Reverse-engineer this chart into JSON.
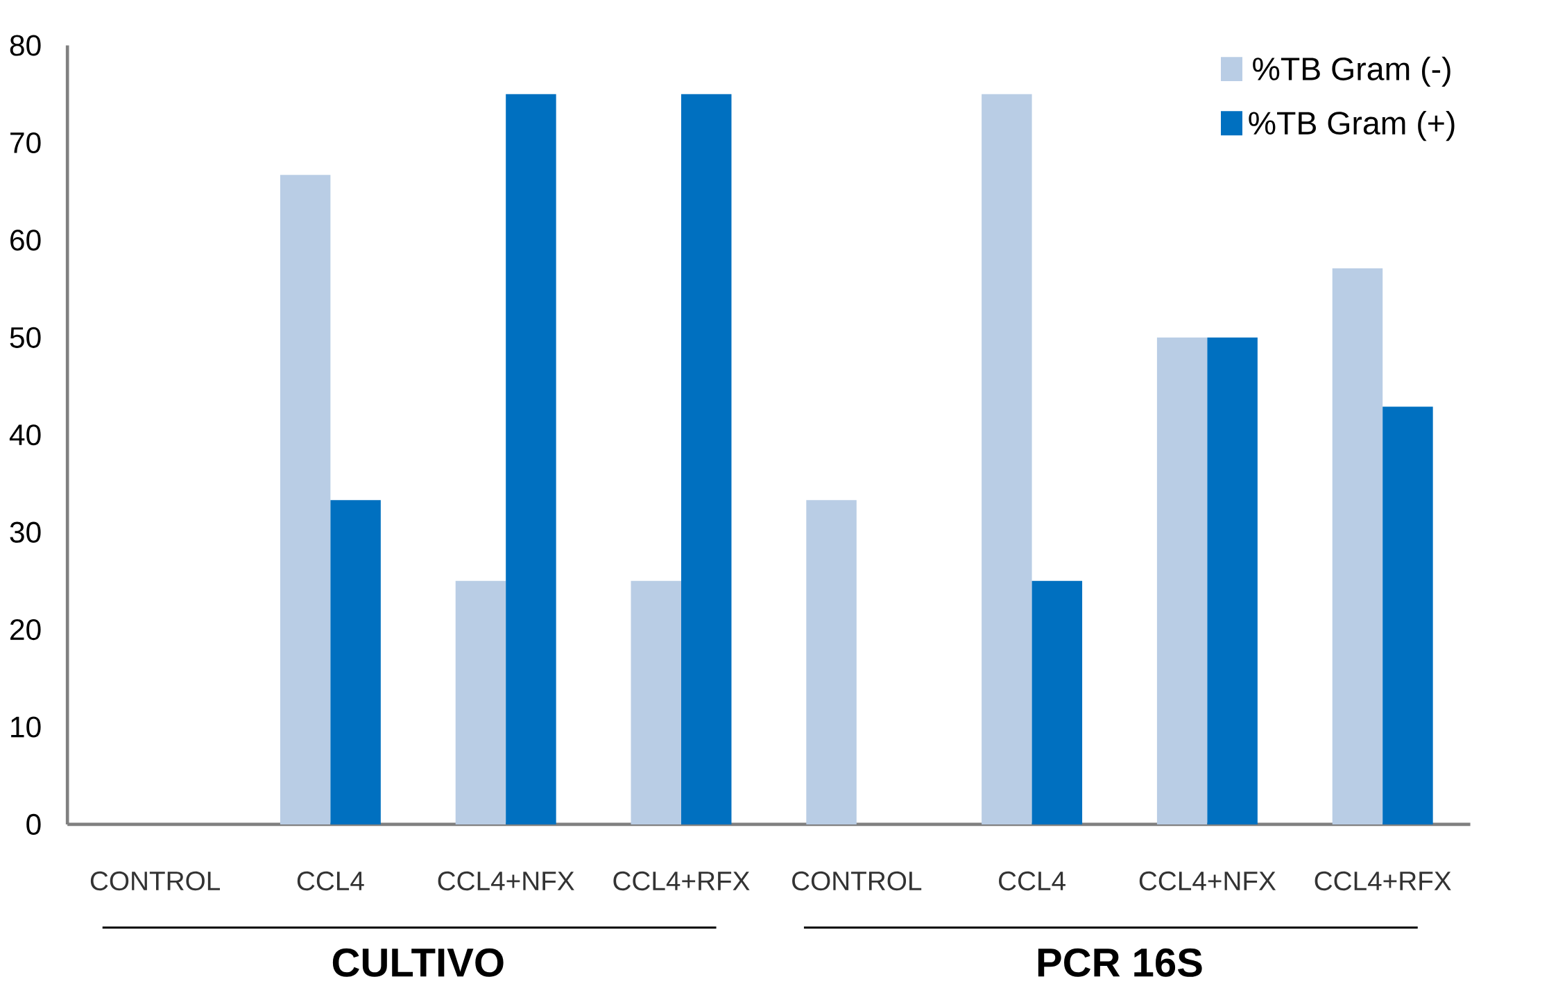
{
  "chart_data": {
    "type": "bar",
    "categories": [
      "CONTROL",
      "CCL4",
      "CCL4+NFX",
      "CCL4+RFX",
      "CONTROL",
      "CCL4",
      "CCL4+NFX",
      "CCL4+RFX"
    ],
    "series": [
      {
        "name": "%TB Gram (-)",
        "color": "#b9cde5",
        "values": [
          0,
          66.7,
          25,
          25,
          33.3,
          75,
          50,
          57.1
        ]
      },
      {
        "name": "%TB Gram (+)",
        "color": "#0070c0",
        "values": [
          0,
          33.3,
          75,
          75,
          0,
          25,
          50,
          42.9
        ]
      }
    ],
    "ylim": [
      0,
      80
    ],
    "yticks": [
      0,
      10,
      20,
      30,
      40,
      50,
      60,
      70,
      80
    ],
    "grid": false,
    "legend": "top right",
    "annotations": [
      "CULTIVO",
      "PCR 16S"
    ]
  }
}
